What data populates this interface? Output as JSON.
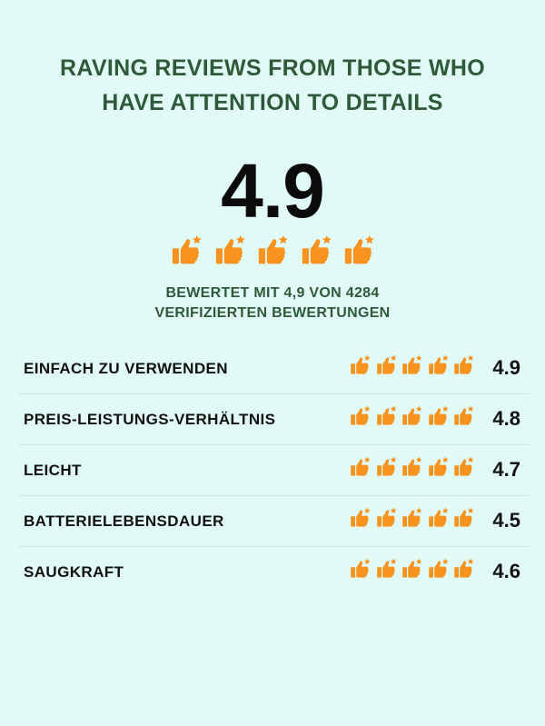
{
  "headline": "RAVING REVIEWS FROM THOSE WHO HAVE ATTENTION TO DETAILS",
  "overall": {
    "score": "4.9",
    "icon": "thumbs-up-star-icon",
    "icon_count": 5,
    "subtitle_line1": "BEWERTET MIT 4,9 VON 4284",
    "subtitle_line2": "VERIFIZIERTEN BEWERTUNGEN"
  },
  "colors": {
    "background": "#e1faf6",
    "heading": "#2e5a3a",
    "icon": "#f7931e"
  },
  "ratings": [
    {
      "label": "EINFACH ZU VERWENDEN",
      "score": "4.9"
    },
    {
      "label": "PREIS-LEISTUNGS-VERHÄLTNIS",
      "score": "4.8"
    },
    {
      "label": "LEICHT",
      "score": "4.7"
    },
    {
      "label": "BATTERIELEBENSDAUER",
      "score": "4.5"
    },
    {
      "label": "SAUGKRAFT",
      "score": "4.6"
    }
  ]
}
